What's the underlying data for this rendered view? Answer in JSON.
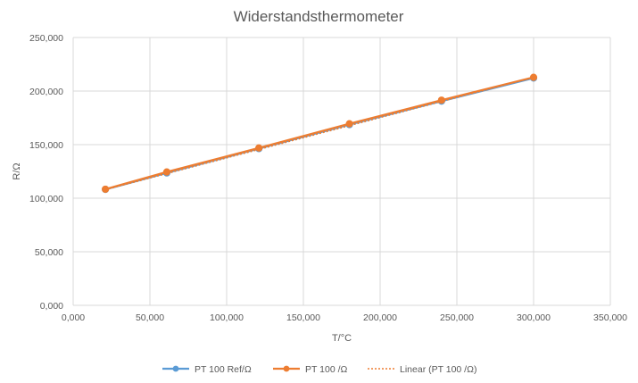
{
  "chart_data": {
    "type": "scatter",
    "title": "Widerstandsthermometer",
    "xlabel": "T/°C",
    "ylabel": "R/Ω",
    "xlim": [
      0,
      350
    ],
    "ylim": [
      0,
      250
    ],
    "x_ticks": [
      0,
      50,
      100,
      150,
      200,
      250,
      300,
      350
    ],
    "y_ticks": [
      0,
      50,
      100,
      150,
      200,
      250
    ],
    "x_tick_labels": [
      "0,000",
      "50,000",
      "100,000",
      "150,000",
      "200,000",
      "250,000",
      "300,000",
      "350,000"
    ],
    "y_tick_labels": [
      "0,000",
      "50,000",
      "100,000",
      "150,000",
      "200,000",
      "250,000"
    ],
    "grid": true,
    "legend_position": "bottom",
    "series": [
      {
        "name": "PT 100 Ref/Ω",
        "color": "#5B9BD5",
        "style": "line-markers",
        "x": [
          21,
          61,
          121,
          180,
          240,
          300
        ],
        "y": [
          108.2,
          123.6,
          146.3,
          168.7,
          190.6,
          212.2
        ]
      },
      {
        "name": "PT 100 /Ω",
        "color": "#ED7D31",
        "style": "line-markers",
        "x": [
          21,
          61,
          121,
          180,
          240,
          300
        ],
        "y": [
          108.4,
          124.5,
          146.9,
          169.5,
          191.5,
          212.8
        ]
      },
      {
        "name": "Linear (PT 100 /Ω)",
        "color": "#ED7D31",
        "style": "dotted-trendline",
        "x": [
          21,
          300
        ],
        "y": [
          107.9,
          212.8
        ]
      }
    ]
  }
}
